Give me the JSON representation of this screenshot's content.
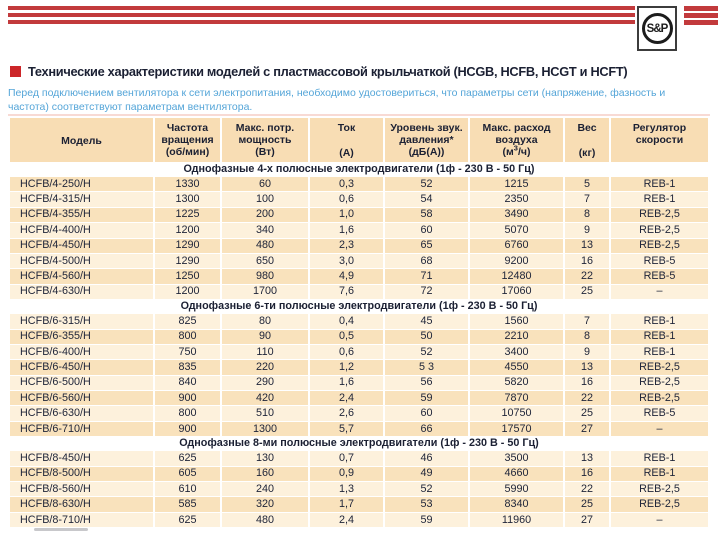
{
  "brand": {
    "logo_text": "S&P"
  },
  "header": {
    "title": "Технические характеристики моделей с пластмассовой крыльчаткой (HCGB, HCFB, HCGT и HCFT)",
    "intro": "Перед подключением вентилятора к сети электропитания, необходимо удостовериться, что параметры сети (напряжение, фазность и частота) соответствуют параметрам вентилятора."
  },
  "colors": {
    "accent_red": "#c23a3c",
    "bullet_red": "#cc2629",
    "intro_blue": "#54a5d8",
    "row_dark": "#f9e2bc",
    "row_light": "#fdf1dc",
    "header_bg": "#f8ddb4",
    "text_dark": "#20263a"
  },
  "table": {
    "columns": [
      {
        "l1": "Модель"
      },
      {
        "l1": "Частота",
        "l2": "вращения",
        "l3": "(об/мин)"
      },
      {
        "l1": "Макс. потр.",
        "l2": "мощность",
        "l3": "(Вт)"
      },
      {
        "l1": "Ток",
        "l3": "(А)"
      },
      {
        "l1": "Уровень звук.",
        "l2": "давления*",
        "l3": "(дБ(А))"
      },
      {
        "l1": "Макс. расход",
        "l2": "воздуха",
        "l3a": "(м",
        "l3sup": "3",
        "l3b": "/ч)"
      },
      {
        "l1": "Вес",
        "l3": "(кг)"
      },
      {
        "l1": "Регулятор",
        "l2": "скорости"
      }
    ],
    "sections": [
      {
        "title": "Однофазные 4-х полюсные электродвигатели (1ф - 230 В - 50 Гц)",
        "start_dark": true,
        "rows": [
          [
            "HCFB/4-250/H",
            "1330",
            "60",
            "0,3",
            "52",
            "1215",
            "5",
            "REB-1"
          ],
          [
            "HCFB/4-315/H",
            "1300",
            "100",
            "0,6",
            "54",
            "2350",
            "7",
            "REB-1"
          ],
          [
            "HCFB/4-355/H",
            "1225",
            "200",
            "1,0",
            "58",
            "3490",
            "8",
            "REB-2,5"
          ],
          [
            "HCFB/4-400/H",
            "1200",
            "340",
            "1,6",
            "60",
            "5070",
            "9",
            "REB-2,5"
          ],
          [
            "HCFB/4-450/H",
            "1290",
            "480",
            "2,3",
            "65",
            "6760",
            "13",
            "REB-2,5"
          ],
          [
            "HCFB/4-500/H",
            "1290",
            "650",
            "3,0",
            "68",
            "9200",
            "16",
            "REB-5"
          ],
          [
            "HCFB/4-560/H",
            "1250",
            "980",
            "4,9",
            "71",
            "12480",
            "22",
            "REB-5"
          ],
          [
            "HCFB/4-630/H",
            "1200",
            "1700",
            "7,6",
            "72",
            "17060",
            "25",
            "–"
          ]
        ]
      },
      {
        "title": "Однофазные 6-ти полюсные электродвигатели (1ф - 230 В - 50 Гц)",
        "start_dark": false,
        "rows": [
          [
            "HCFB/6-315/H",
            "825",
            "80",
            "0,4",
            "45",
            "1560",
            "7",
            "REB-1"
          ],
          [
            "HCFB/6-355/H",
            "800",
            "90",
            "0,5",
            "50",
            "2210",
            "8",
            "REB-1"
          ],
          [
            "HCFB/6-400/H",
            "750",
            "110",
            "0,6",
            "52",
            "3400",
            "9",
            "REB-1"
          ],
          [
            "HCFB/6-450/H",
            "835",
            "220",
            "1,2",
            "5 3",
            "4550",
            "13",
            "REB-2,5"
          ],
          [
            "HCFB/6-500/H",
            "840",
            "290",
            "1,6",
            "56",
            "5820",
            "16",
            "REB-2,5"
          ],
          [
            "HCFB/6-560/H",
            "900",
            "420",
            "2,4",
            "59",
            "7870",
            "22",
            "REB-2,5"
          ],
          [
            "HCFB/6-630/H",
            "800",
            "510",
            "2,6",
            "60",
            "10750",
            "25",
            "REB-5"
          ],
          [
            "HCFB/6-710/H",
            "900",
            "1300",
            "5,7",
            "66",
            "17570",
            "27",
            "–"
          ]
        ]
      },
      {
        "title": "Однофазные 8-ми полюсные электродвигатели (1ф - 230 В - 50 Гц)",
        "start_dark": false,
        "rows": [
          [
            "HCFB/8-450/H",
            "625",
            "130",
            "0,7",
            "46",
            "3500",
            "13",
            "REB-1"
          ],
          [
            "HCFB/8-500/H",
            "605",
            "160",
            "0,9",
            "49",
            "4660",
            "16",
            "REB-1"
          ],
          [
            "HCFB/8-560/H",
            "610",
            "240",
            "1,3",
            "52",
            "5990",
            "22",
            "REB-2,5"
          ],
          [
            "HCFB/8-630/H",
            "585",
            "320",
            "1,7",
            "53",
            "8340",
            "25",
            "REB-2,5"
          ],
          [
            "HCFB/8-710/H",
            "625",
            "480",
            "2,4",
            "59",
            "11960",
            "27",
            "–"
          ]
        ]
      }
    ]
  }
}
